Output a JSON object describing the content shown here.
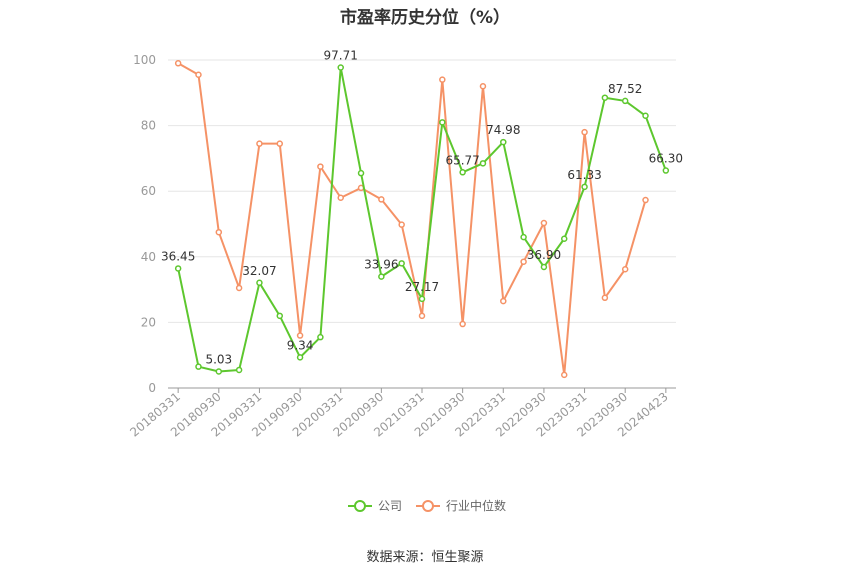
{
  "title": "市盈率历史分位（%）",
  "source": "数据来源：恒生聚源",
  "colors": {
    "company": "#5dc72e",
    "industry": "#f59266",
    "grid": "#e6e6e6",
    "axis": "#999999"
  },
  "chart_data": {
    "type": "line",
    "title": "市盈率历史分位（%）",
    "ylim": [
      0,
      100
    ],
    "yticks": [
      0,
      20,
      40,
      60,
      80,
      100
    ],
    "grid": true,
    "legend_position": "bottom",
    "x": [
      "20180331",
      "20180630",
      "20180930",
      "20181231",
      "20190331",
      "20190630",
      "20190930",
      "20191231",
      "20200331",
      "20200630",
      "20200930",
      "20201231",
      "20210331",
      "20210630",
      "20210930",
      "20211231",
      "20220331",
      "20220630",
      "20220930",
      "20221231",
      "20230331",
      "20230630",
      "20230930",
      "20231231",
      "20240423"
    ],
    "xtick_labels": [
      "20180331",
      "20180930",
      "20190331",
      "20190930",
      "20200331",
      "20200930",
      "20210331",
      "20210930",
      "20220331",
      "20220930",
      "20230331",
      "20230930",
      "20240423"
    ],
    "xtick_indices": [
      0,
      2,
      4,
      6,
      8,
      10,
      12,
      14,
      16,
      18,
      20,
      22,
      24
    ],
    "series": [
      {
        "name": "公司",
        "values": [
          36.45,
          6.5,
          5.03,
          5.5,
          32.07,
          22.0,
          9.34,
          15.5,
          97.71,
          65.5,
          33.96,
          38.0,
          27.17,
          81.0,
          65.77,
          68.5,
          74.98,
          46.0,
          36.9,
          45.5,
          61.33,
          88.5,
          87.52,
          83.0,
          66.3
        ],
        "labeled_indices": [
          0,
          2,
          4,
          6,
          8,
          10,
          12,
          14,
          16,
          18,
          20,
          22,
          24
        ],
        "label_texts": [
          "36.45",
          "5.03",
          "32.07",
          "9.34",
          "97.71",
          "33.96",
          "27.17",
          "65.77",
          "74.98",
          "36.90",
          "61.33",
          "87.52",
          "66.30"
        ]
      },
      {
        "name": "行业中位数",
        "values": [
          99.0,
          95.5,
          47.5,
          30.5,
          74.5,
          74.5,
          16.0,
          67.5,
          58.0,
          61.0,
          57.5,
          49.8,
          22.0,
          94.0,
          19.5,
          92.0,
          26.5,
          38.5,
          50.3,
          4.0,
          78.0,
          27.5,
          36.2,
          57.3,
          null
        ],
        "labeled_indices": [],
        "label_texts": []
      }
    ]
  }
}
